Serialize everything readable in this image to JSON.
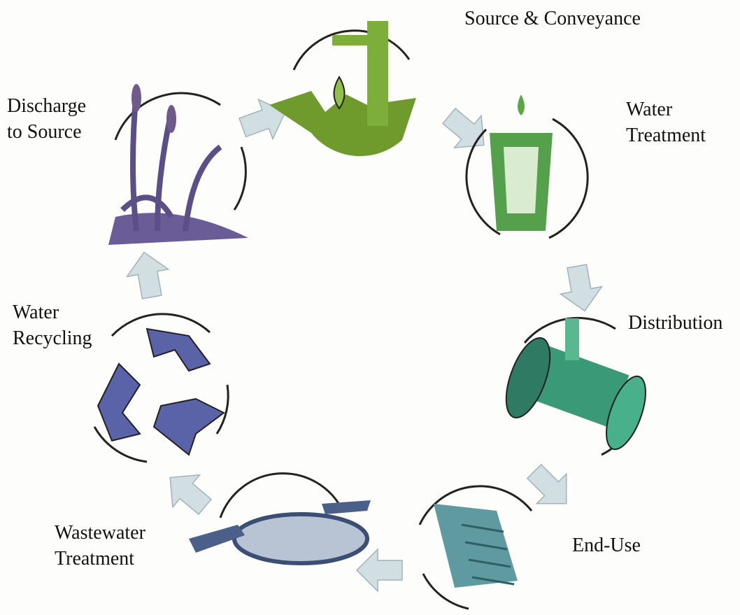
{
  "nodes": [
    {
      "lines": [
        "Source & Conveyance"
      ]
    },
    {
      "lines": [
        "Water",
        "Treatment"
      ]
    },
    {
      "lines": [
        "Distribution"
      ]
    },
    {
      "lines": [
        "End-Use"
      ]
    },
    {
      "lines": [
        "Wastewater",
        "Treatment"
      ]
    },
    {
      "lines": [
        "Water",
        "Recycling"
      ]
    },
    {
      "lines": [
        "Discharge",
        "to Source"
      ]
    }
  ]
}
